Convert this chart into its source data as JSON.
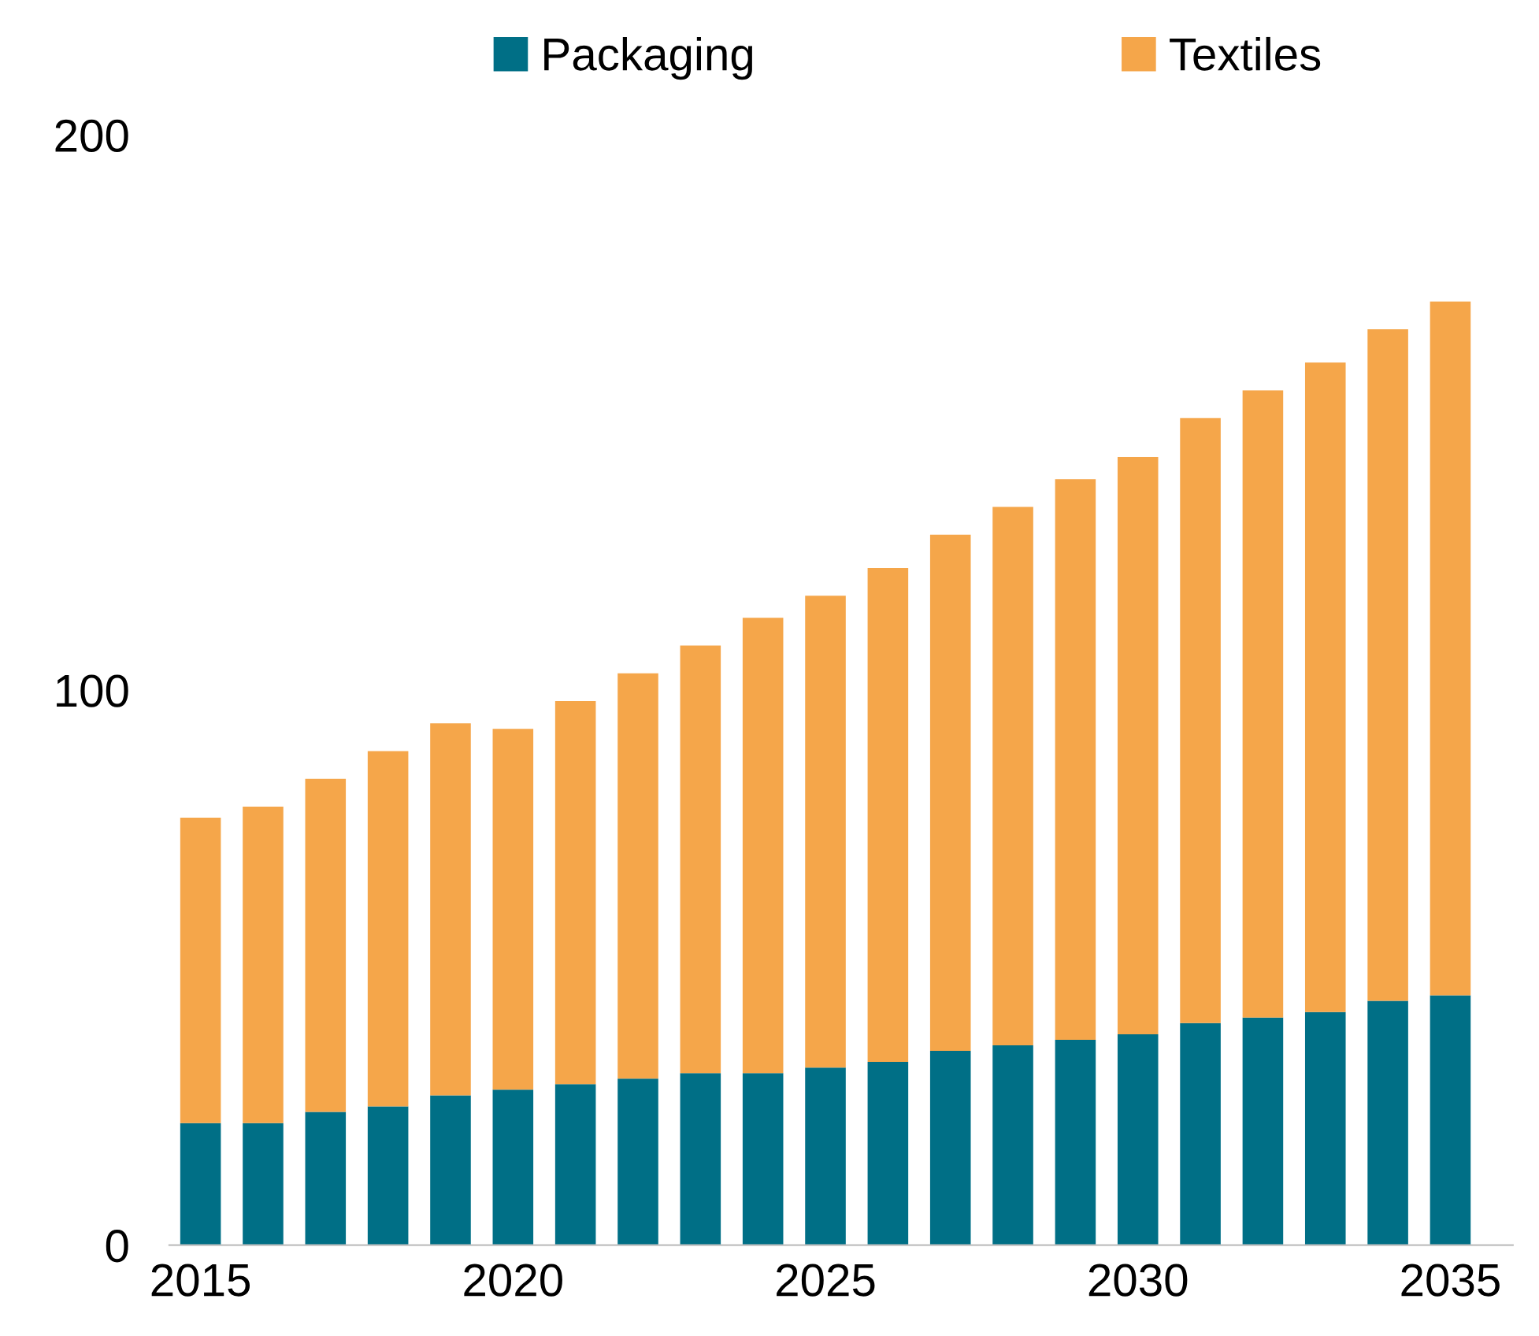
{
  "chart_data": {
    "type": "bar",
    "stacked": true,
    "x": [
      2015,
      2016,
      2017,
      2018,
      2019,
      2020,
      2021,
      2022,
      2023,
      2024,
      2025,
      2026,
      2027,
      2028,
      2029,
      2030,
      2031,
      2032,
      2033,
      2034,
      2035
    ],
    "series": [
      {
        "name": "Packaging",
        "color": "#006f86",
        "values": [
          22,
          22,
          24,
          25,
          27,
          28,
          29,
          30,
          31,
          31,
          32,
          33,
          35,
          36,
          37,
          38,
          40,
          41,
          42,
          44,
          45
        ]
      },
      {
        "name": "Textiles",
        "color": "#f5a64a",
        "values": [
          55,
          57,
          60,
          64,
          67,
          65,
          69,
          73,
          77,
          82,
          85,
          89,
          93,
          97,
          101,
          104,
          109,
          113,
          117,
          121,
          125
        ]
      }
    ],
    "xlim": [
      2014.5,
      2036
    ],
    "xticks": [
      2015,
      2020,
      2025,
      2030,
      2035
    ],
    "ylim": [
      0,
      200
    ],
    "yticks": [
      0,
      100,
      200
    ],
    "legend": "top",
    "grid": false
  }
}
